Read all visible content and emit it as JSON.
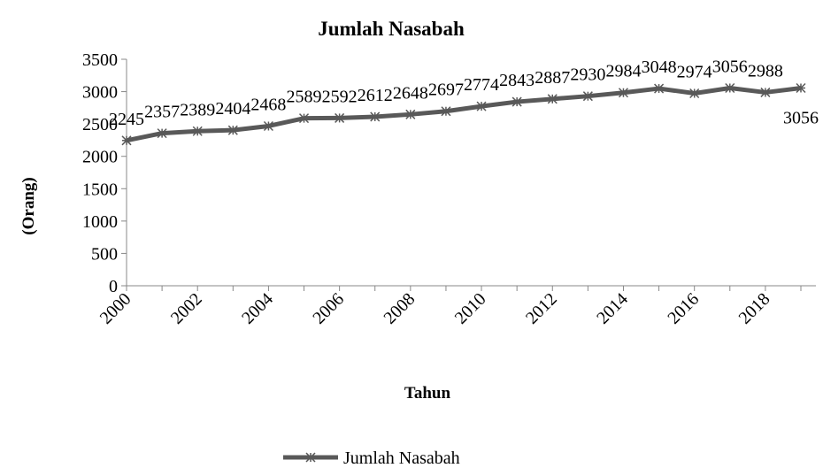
{
  "chart_data": {
    "type": "line",
    "title": "Jumlah Nasabah",
    "x_label": "Tahun",
    "y_label": "(Orang)",
    "categories": [
      "2000",
      null,
      "2002",
      null,
      "2004",
      null,
      "2006",
      null,
      "2008",
      null,
      "2010",
      null,
      "2012",
      null,
      "2014",
      null,
      "2016",
      null,
      "2018",
      null
    ],
    "series": [
      {
        "name": "Jumlah Nasabah",
        "color": "#595959",
        "values": [
          2245,
          2357,
          2389,
          2404,
          2468,
          2589,
          2592,
          2612,
          2648,
          2697,
          2774,
          2843,
          2887,
          2930,
          2984,
          3048,
          2974,
          3056,
          2988,
          3056
        ]
      }
    ],
    "ylim": [
      0,
      3500
    ],
    "yticks": [
      0,
      500,
      1000,
      1500,
      2000,
      2500,
      3000,
      3500
    ],
    "legend": "bottom"
  }
}
